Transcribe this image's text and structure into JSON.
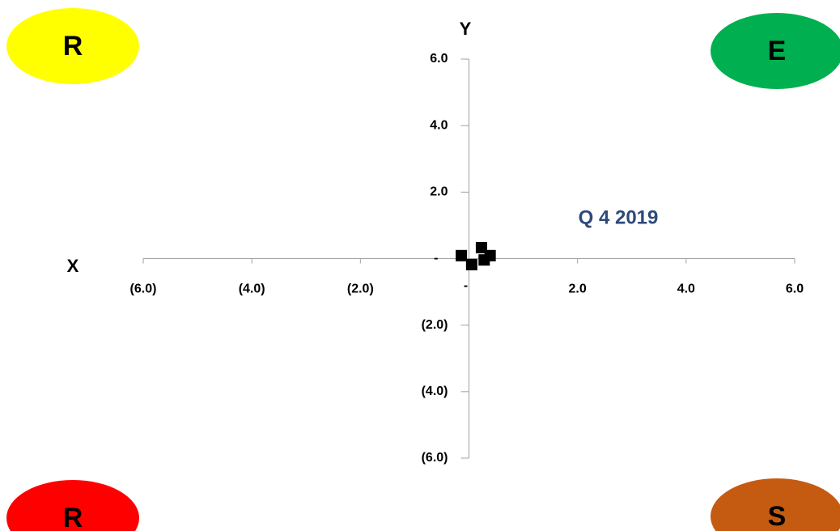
{
  "chart_data": {
    "type": "scatter",
    "x_label": "X",
    "y_label": "Y",
    "annotation": "Q 4 2019",
    "annotation_color": "#2e4a7a",
    "quadrant_labels": [
      {
        "text": "R",
        "color": "#ffff00"
      },
      {
        "text": "E",
        "color": "#00b050"
      },
      {
        "text": "R",
        "color": "#ff0000"
      },
      {
        "text": "S",
        "color": "#c55a11"
      }
    ],
    "color": "#000000",
    "x": [
      -0.14,
      0.05,
      0.23,
      0.28,
      0.39
    ],
    "values": [
      0.09,
      -0.18,
      0.33,
      -0.04,
      0.09
    ],
    "xlim": [
      -6,
      6
    ],
    "ylim": [
      -6,
      6
    ],
    "xticks": [
      {
        "value": -6,
        "label": "(6.0)"
      },
      {
        "value": -4,
        "label": "(4.0)"
      },
      {
        "value": -2,
        "label": "(2.0)"
      },
      {
        "value": 0,
        "label": "-"
      },
      {
        "value": 2,
        "label": "2.0"
      },
      {
        "value": 4,
        "label": "4.0"
      },
      {
        "value": 6,
        "label": "6.0"
      }
    ],
    "yticks": [
      {
        "value": -6,
        "label": "(6.0)"
      },
      {
        "value": -4,
        "label": "(4.0)"
      },
      {
        "value": -2,
        "label": "(2.0)"
      },
      {
        "value": 0,
        "label": "-"
      },
      {
        "value": 2,
        "label": "2.0"
      },
      {
        "value": 4,
        "label": "4.0"
      },
      {
        "value": 6,
        "label": "6.0"
      }
    ],
    "grid": false
  }
}
